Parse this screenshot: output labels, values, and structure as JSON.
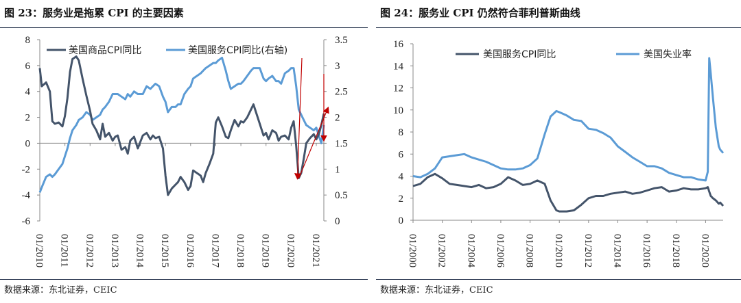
{
  "colors": {
    "dark": "#44546a",
    "light": "#5b9bd5",
    "arrow": "#c00000"
  },
  "left": {
    "title": "图 23：服务业是拖累 CPI 的主要因素",
    "source": "数据来源：东北证券，CEIC"
  },
  "right": {
    "title": "图 24：服务业 CPI 仍然符合菲利普斯曲线",
    "source": "数据来源：东北证券，CEIC"
  },
  "chart_data": [
    {
      "type": "line",
      "title": "图 23：服务业是拖累 CPI 的主要因素",
      "xlabel": "",
      "ylabel": "",
      "x_ticks": [
        "01/2010",
        "01/2011",
        "01/2012",
        "01/2013",
        "01/2014",
        "01/2015",
        "01/2016",
        "01/2017",
        "01/2018",
        "01/2019",
        "01/2020",
        "01/2021"
      ],
      "x": [
        2010.0,
        2010.08,
        2010.25,
        2010.4,
        2010.5,
        2010.6,
        2010.75,
        2010.9,
        2011.0,
        2011.1,
        2011.2,
        2011.3,
        2011.45,
        2011.55,
        2011.7,
        2011.85,
        2012.0,
        2012.1,
        2012.25,
        2012.4,
        2012.5,
        2012.6,
        2012.75,
        2012.9,
        2013.0,
        2013.1,
        2013.25,
        2013.4,
        2013.5,
        2013.6,
        2013.75,
        2013.9,
        2014.0,
        2014.1,
        2014.25,
        2014.4,
        2014.5,
        2014.6,
        2014.75,
        2014.9,
        2015.0,
        2015.1,
        2015.25,
        2015.4,
        2015.5,
        2015.6,
        2015.75,
        2015.9,
        2016.0,
        2016.1,
        2016.25,
        2016.4,
        2016.5,
        2016.6,
        2016.75,
        2016.9,
        2017.0,
        2017.1,
        2017.25,
        2017.4,
        2017.5,
        2017.6,
        2017.75,
        2017.9,
        2018.0,
        2018.1,
        2018.25,
        2018.4,
        2018.5,
        2018.6,
        2018.75,
        2018.9,
        2019.0,
        2019.1,
        2019.25,
        2019.4,
        2019.5,
        2019.6,
        2019.75,
        2019.9,
        2020.0,
        2020.1,
        2020.2,
        2020.3,
        2020.4,
        2020.5,
        2020.6,
        2020.75,
        2020.9,
        2021.0,
        2021.1,
        2021.2,
        2021.3
      ],
      "series": [
        {
          "name": "美国商品CPI同比",
          "axis": "left",
          "color": "#44546a",
          "values": [
            5.8,
            4.4,
            4.7,
            4.0,
            1.7,
            1.5,
            1.6,
            1.3,
            2.1,
            3.5,
            5.5,
            6.5,
            6.7,
            6.4,
            5.0,
            3.7,
            2.5,
            1.5,
            1.0,
            0.3,
            1.5,
            0.5,
            0.8,
            0.2,
            0.5,
            0.6,
            -0.5,
            -0.3,
            -0.8,
            0.2,
            0.5,
            -0.4,
            0.1,
            0.6,
            0.8,
            0.3,
            0.6,
            0.4,
            0.5,
            -0.4,
            -2.5,
            -4.0,
            -3.5,
            -3.2,
            -3.0,
            -2.6,
            -3.0,
            -3.6,
            -3.3,
            -2.1,
            -2.3,
            -2.5,
            -3.0,
            -2.3,
            -1.6,
            -0.8,
            1.6,
            2.0,
            1.3,
            0.5,
            0.4,
            1.0,
            1.8,
            1.3,
            1.7,
            1.6,
            2.0,
            2.6,
            3.0,
            2.4,
            1.5,
            0.6,
            0.8,
            0.3,
            1.0,
            0.8,
            0.2,
            0.5,
            0.6,
            0.3,
            1.2,
            1.7,
            -0.2,
            -2.7,
            -2.3,
            -1.2,
            0.0,
            0.4,
            0.7,
            0.3,
            0.7,
            1.4,
            2.3
          ]
        },
        {
          "name": "美国服务CPI同比(右轴)",
          "axis": "right",
          "color": "#5b9bd5",
          "values": [
            0.55,
            0.65,
            0.85,
            0.9,
            0.85,
            0.9,
            1.0,
            1.1,
            1.25,
            1.4,
            1.6,
            1.75,
            1.85,
            1.95,
            2.0,
            2.1,
            2.05,
            1.95,
            2.0,
            2.05,
            2.15,
            2.2,
            2.3,
            2.45,
            2.45,
            2.45,
            2.4,
            2.35,
            2.45,
            2.4,
            2.5,
            2.45,
            2.45,
            2.45,
            2.6,
            2.55,
            2.6,
            2.65,
            2.6,
            2.4,
            2.3,
            2.1,
            2.2,
            2.2,
            2.25,
            2.25,
            2.45,
            2.55,
            2.6,
            2.75,
            2.8,
            2.85,
            2.9,
            2.95,
            3.0,
            3.05,
            3.05,
            3.1,
            3.15,
            2.9,
            2.7,
            2.55,
            2.6,
            2.65,
            2.65,
            2.7,
            2.8,
            2.9,
            2.95,
            2.95,
            2.95,
            2.75,
            2.7,
            2.75,
            2.8,
            2.7,
            2.7,
            2.65,
            2.85,
            2.9,
            2.95,
            2.95,
            2.6,
            2.15,
            2.05,
            1.95,
            1.85,
            1.8,
            1.75,
            1.8,
            1.65,
            1.5,
            1.85
          ]
        }
      ],
      "ylim_left": [
        -6,
        8
      ],
      "ylim_right": [
        0,
        3.5
      ],
      "yticks_left": [
        "-6",
        "-4",
        "-2",
        "0",
        "2",
        "4",
        "6",
        "8"
      ],
      "yticks_right": [
        "0",
        "0.5",
        "1",
        "1.5",
        "2",
        "2.5",
        "3",
        "3.5"
      ],
      "legend": [
        "美国商品CPI同比",
        "美国服务CPI同比(右轴)"
      ],
      "legend_position": "top",
      "annotation": "red arrows pointing to the 2020 trough and the 2021 upturn",
      "grid": false
    },
    {
      "type": "line",
      "title": "图 24：服务业 CPI 仍然符合菲利普斯曲线",
      "xlabel": "",
      "ylabel": "",
      "x_ticks": [
        "01/2000",
        "01/2002",
        "01/2004",
        "01/2006",
        "01/2008",
        "01/2010",
        "01/2012",
        "01/2014",
        "01/2016",
        "01/2018",
        "01/2020"
      ],
      "x": [
        2000.0,
        2000.5,
        2001.0,
        2001.5,
        2002.0,
        2002.5,
        2003.0,
        2003.5,
        2004.0,
        2004.5,
        2005.0,
        2005.5,
        2006.0,
        2006.5,
        2007.0,
        2007.5,
        2008.0,
        2008.5,
        2009.0,
        2009.4,
        2009.8,
        2010.0,
        2010.5,
        2011.0,
        2011.5,
        2012.0,
        2012.5,
        2013.0,
        2013.5,
        2014.0,
        2014.5,
        2015.0,
        2015.5,
        2016.0,
        2016.5,
        2017.0,
        2017.5,
        2018.0,
        2018.5,
        2019.0,
        2019.5,
        2020.0,
        2020.15,
        2020.25,
        2020.35,
        2020.5,
        2020.7,
        2020.9,
        2021.0,
        2021.2
      ],
      "series": [
        {
          "name": "美国服务CPI同比",
          "color": "#44546a",
          "values": [
            3.1,
            3.3,
            3.9,
            4.2,
            3.8,
            3.3,
            3.2,
            3.1,
            3.0,
            3.2,
            2.9,
            3.0,
            3.3,
            3.9,
            3.6,
            3.2,
            3.3,
            3.6,
            3.3,
            1.8,
            0.9,
            0.8,
            0.8,
            0.9,
            1.4,
            2.0,
            2.2,
            2.2,
            2.4,
            2.5,
            2.6,
            2.4,
            2.5,
            2.7,
            2.9,
            3.0,
            2.6,
            2.7,
            2.9,
            2.8,
            2.8,
            2.9,
            3.0,
            2.6,
            2.2,
            2.0,
            1.8,
            1.5,
            1.6,
            1.3
          ]
        },
        {
          "name": "美国失业率",
          "color": "#5b9bd5",
          "values": [
            4.0,
            3.9,
            4.2,
            4.7,
            5.7,
            5.8,
            5.9,
            6.0,
            5.7,
            5.5,
            5.3,
            5.0,
            4.7,
            4.6,
            4.6,
            4.7,
            5.0,
            5.6,
            7.8,
            9.4,
            9.9,
            9.8,
            9.5,
            9.1,
            9.0,
            8.3,
            8.2,
            7.9,
            7.5,
            6.7,
            6.2,
            5.7,
            5.3,
            4.9,
            4.9,
            4.7,
            4.3,
            4.1,
            3.9,
            3.9,
            3.7,
            3.6,
            4.4,
            14.7,
            13.3,
            11.1,
            8.4,
            6.7,
            6.4,
            6.1
          ]
        }
      ],
      "ylim": [
        0,
        16
      ],
      "yticks": [
        "0",
        "2",
        "4",
        "6",
        "8",
        "10",
        "12",
        "14",
        "16"
      ],
      "legend": [
        "美国服务CPI同比",
        "美国失业率"
      ],
      "legend_position": "top",
      "grid": false
    }
  ]
}
